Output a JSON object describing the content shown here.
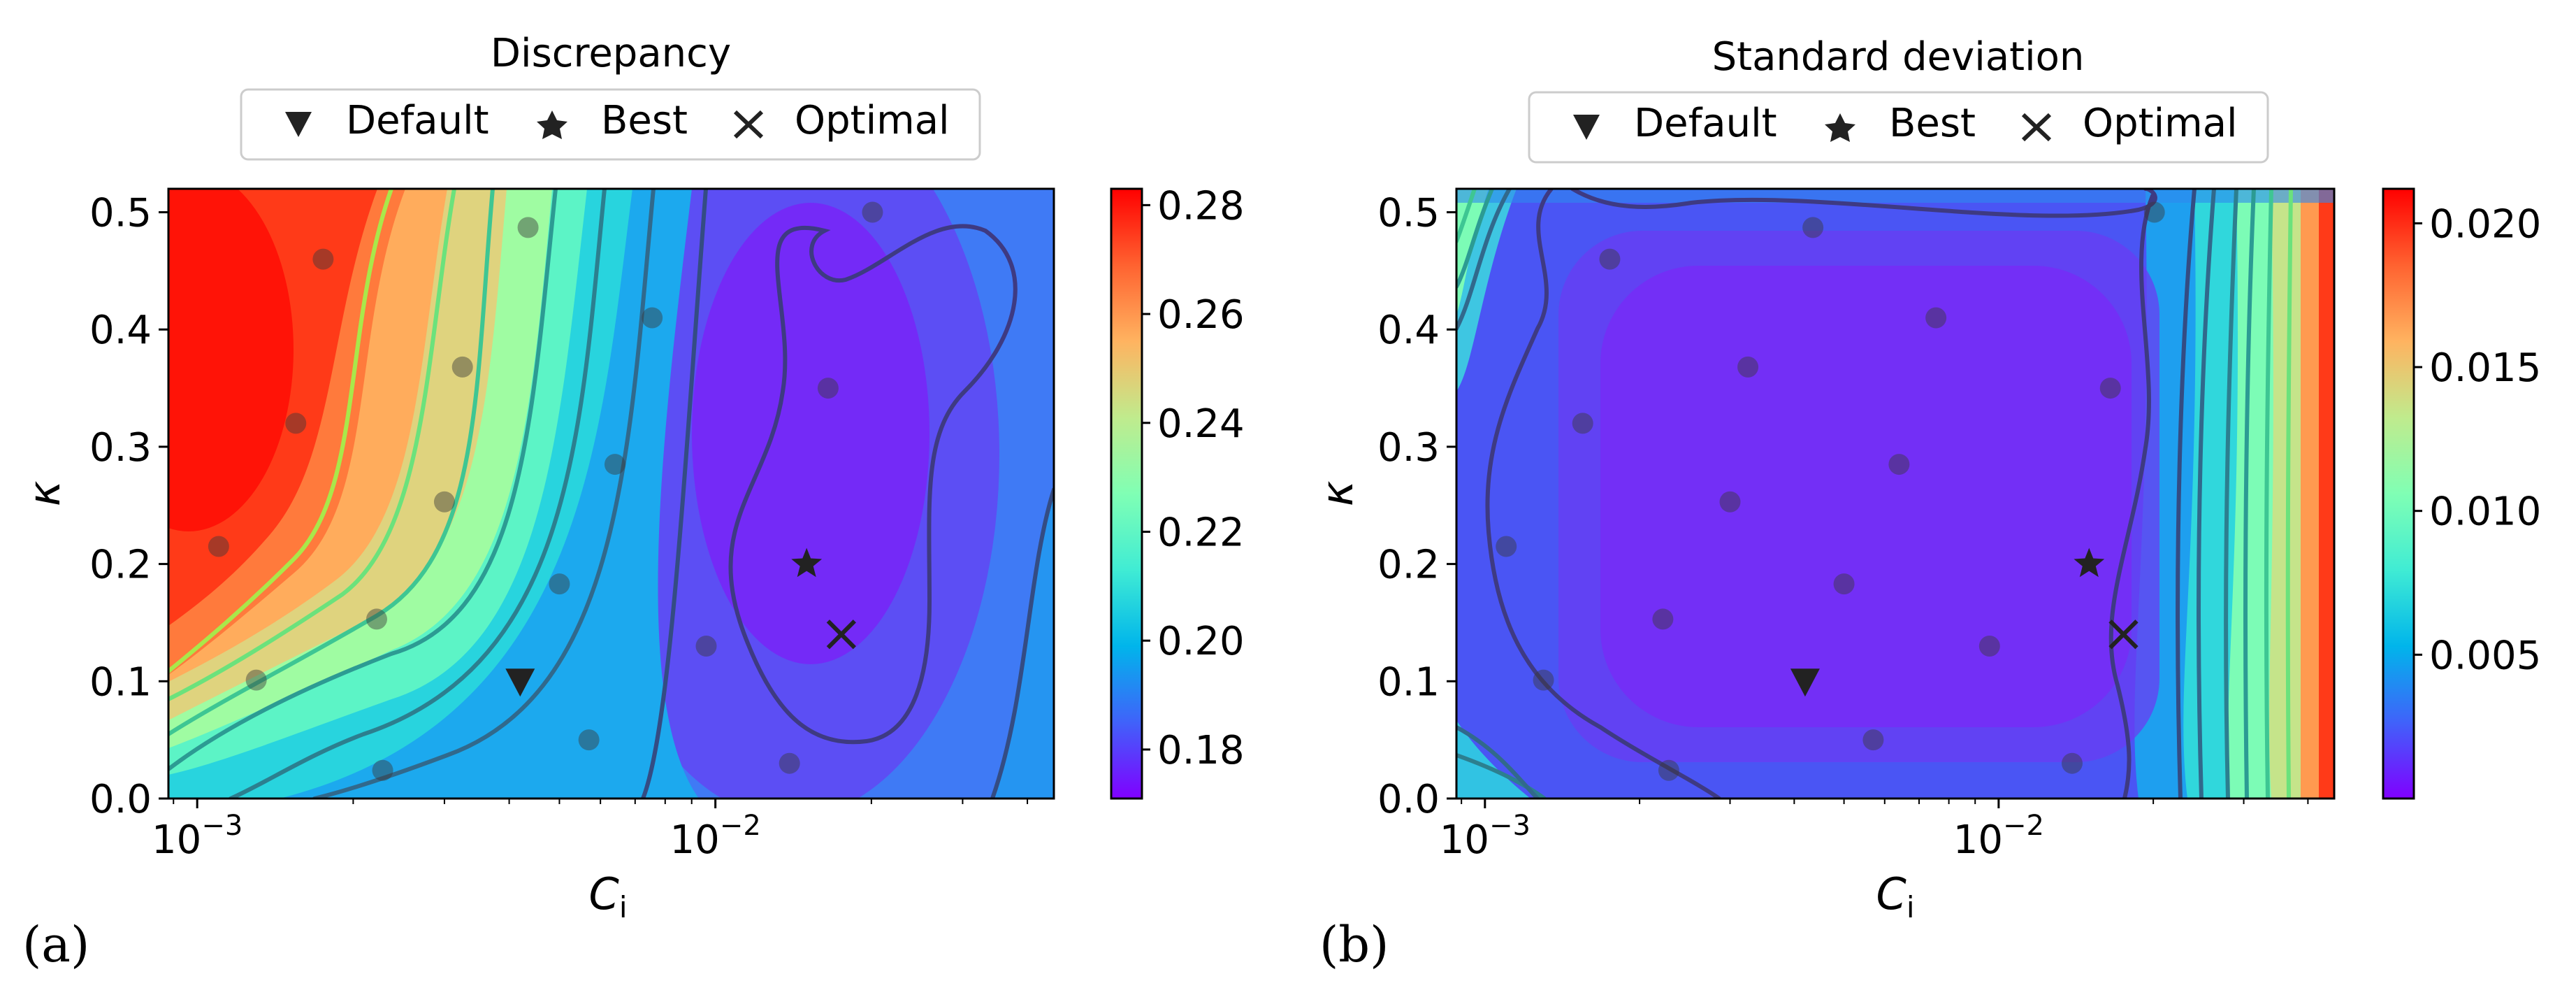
{
  "chart_data": [
    {
      "panel_label": "(a)",
      "type": "heatmap",
      "title": "Discrepancy",
      "xlabel": "C",
      "xlabel_sub": "i",
      "ylabel": "κ",
      "xscale": "log",
      "xlim": [
        0.00088,
        0.045
      ],
      "ylim": [
        0.0,
        0.52
      ],
      "x_ticks": [
        {
          "value": 0.001,
          "base": "10",
          "exp": "−3"
        },
        {
          "value": 0.01,
          "base": "10",
          "exp": "−2"
        }
      ],
      "y_ticks": [
        "0.0",
        "0.1",
        "0.2",
        "0.3",
        "0.4",
        "0.5"
      ],
      "y_tick_values": [
        0.0,
        0.1,
        0.2,
        0.3,
        0.4,
        0.5
      ],
      "colorbar": {
        "min": 0.171,
        "max": 0.283,
        "ticks": [
          "0.18",
          "0.20",
          "0.22",
          "0.24",
          "0.26",
          "0.28"
        ],
        "tick_values": [
          0.18,
          0.2,
          0.22,
          0.24,
          0.26,
          0.28
        ]
      },
      "legend": {
        "position": "top-center",
        "entries": [
          "Default",
          "Best",
          "Optimal"
        ]
      },
      "markers": {
        "default": {
          "x": 0.0042,
          "y": 0.1
        },
        "best": {
          "x": 0.015,
          "y": 0.2
        },
        "optimal": {
          "x": 0.0175,
          "y": 0.14
        }
      },
      "samples": [
        [
          0.00175,
          0.46
        ],
        [
          0.00435,
          0.487
        ],
        [
          0.0201,
          0.5
        ],
        [
          0.00755,
          0.41
        ],
        [
          0.00325,
          0.368
        ],
        [
          0.0165,
          0.35
        ],
        [
          0.00155,
          0.32
        ],
        [
          0.0064,
          0.285
        ],
        [
          0.003,
          0.253
        ],
        [
          0.0011,
          0.215
        ],
        [
          0.005,
          0.183
        ],
        [
          0.00222,
          0.153
        ],
        [
          0.0096,
          0.13
        ],
        [
          0.0013,
          0.101
        ],
        [
          0.0057,
          0.05
        ],
        [
          0.0139,
          0.03
        ],
        [
          0.00228,
          0.024
        ]
      ]
    },
    {
      "panel_label": "(b)",
      "type": "heatmap",
      "title": "Standard deviation",
      "xlabel": "C",
      "xlabel_sub": "i",
      "ylabel": "κ",
      "xscale": "log",
      "xlim": [
        0.00088,
        0.045
      ],
      "ylim": [
        0.0,
        0.52
      ],
      "x_ticks": [
        {
          "value": 0.001,
          "base": "10",
          "exp": "−3"
        },
        {
          "value": 0.01,
          "base": "10",
          "exp": "−2"
        }
      ],
      "y_ticks": [
        "0.0",
        "0.1",
        "0.2",
        "0.3",
        "0.4",
        "0.5"
      ],
      "y_tick_values": [
        0.0,
        0.1,
        0.2,
        0.3,
        0.4,
        0.5
      ],
      "colorbar": {
        "min": 0.0,
        "max": 0.0212,
        "ticks": [
          "0.005",
          "0.010",
          "0.015",
          "0.020"
        ],
        "tick_values": [
          0.005,
          0.01,
          0.015,
          0.02
        ]
      },
      "legend": {
        "position": "top-center",
        "entries": [
          "Default",
          "Best",
          "Optimal"
        ]
      },
      "markers": {
        "default": {
          "x": 0.0042,
          "y": 0.1
        },
        "best": {
          "x": 0.015,
          "y": 0.2
        },
        "optimal": {
          "x": 0.0175,
          "y": 0.14
        }
      },
      "samples": [
        [
          0.00175,
          0.46
        ],
        [
          0.00435,
          0.487
        ],
        [
          0.0201,
          0.5
        ],
        [
          0.00755,
          0.41
        ],
        [
          0.00325,
          0.368
        ],
        [
          0.0165,
          0.35
        ],
        [
          0.00155,
          0.32
        ],
        [
          0.0064,
          0.285
        ],
        [
          0.003,
          0.253
        ],
        [
          0.0011,
          0.215
        ],
        [
          0.005,
          0.183
        ],
        [
          0.00222,
          0.153
        ],
        [
          0.0096,
          0.13
        ],
        [
          0.0013,
          0.101
        ],
        [
          0.0057,
          0.05
        ],
        [
          0.0139,
          0.03
        ],
        [
          0.00228,
          0.024
        ]
      ]
    }
  ]
}
